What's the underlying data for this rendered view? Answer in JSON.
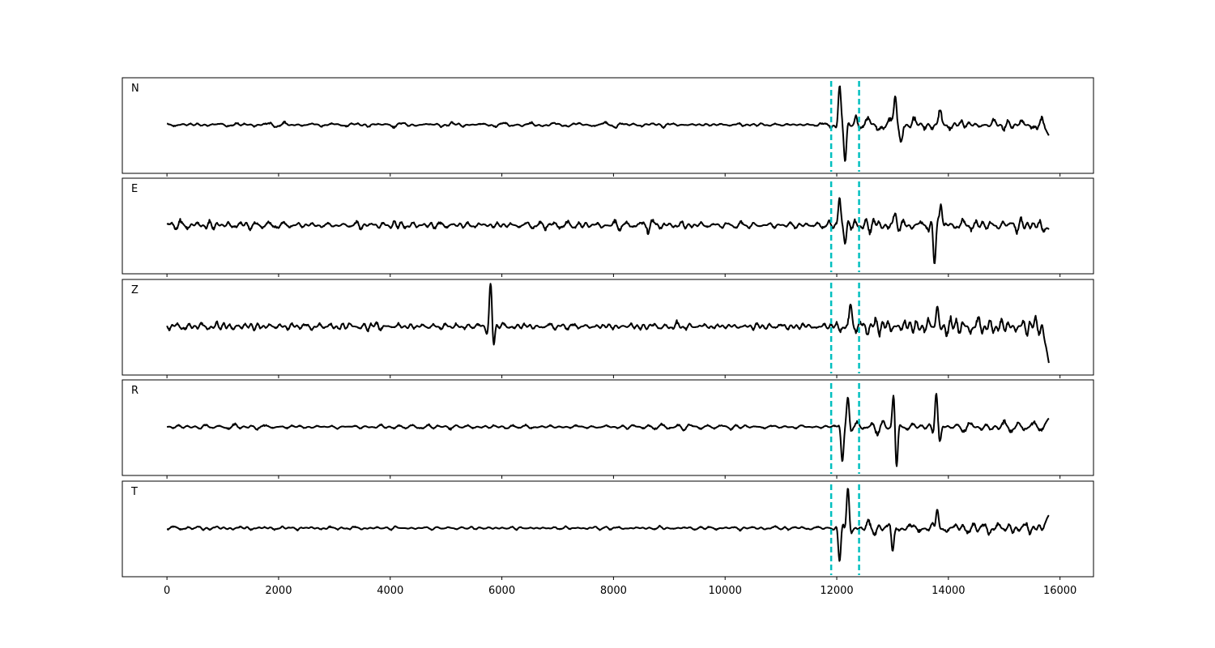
{
  "chart_data": {
    "type": "line",
    "xlim": [
      -800,
      16600
    ],
    "x_ticks": [
      0,
      2000,
      4000,
      6000,
      8000,
      10000,
      12000,
      14000,
      16000
    ],
    "x_tick_labels": [
      "0",
      "2000",
      "4000",
      "6000",
      "8000",
      "10000",
      "12000",
      "14000",
      "16000"
    ],
    "x_range": [
      0,
      15800
    ],
    "markers": {
      "x": [
        11900,
        12400
      ],
      "color": "#00bfbf",
      "style": "dashed"
    },
    "line_color": "#000000",
    "grid": false,
    "panels": [
      {
        "label": "N",
        "noise": 0.06,
        "noise_late": 0.17,
        "seed": 11,
        "events": [
          {
            "x": 12050,
            "a": 0.85
          },
          {
            "x": 12150,
            "a": -0.85
          },
          {
            "x": 12350,
            "a": 0.25
          },
          {
            "x": 13050,
            "a": 0.65
          },
          {
            "x": 13150,
            "a": -0.35
          },
          {
            "x": 13850,
            "a": 0.25
          }
        ],
        "end_value": -0.25
      },
      {
        "label": "E",
        "noise": 0.11,
        "noise_late": 0.22,
        "seed": 23,
        "events": [
          {
            "x": 12050,
            "a": 0.7
          },
          {
            "x": 12150,
            "a": -0.4
          },
          {
            "x": 13050,
            "a": 0.85
          },
          {
            "x": 13050,
            "a": -0.6
          },
          {
            "x": 13750,
            "a": -0.9
          },
          {
            "x": 13870,
            "a": 0.55
          }
        ],
        "end_value": -0.1
      },
      {
        "label": "Z",
        "noise": 0.13,
        "noise_late": 0.32,
        "seed": 37,
        "events": [
          {
            "x": 5800,
            "a": 0.95
          },
          {
            "x": 5850,
            "a": -0.35
          },
          {
            "x": 12250,
            "a": 0.5
          },
          {
            "x": 13800,
            "a": 0.45
          }
        ],
        "end_value": -0.85
      },
      {
        "label": "R",
        "noise": 0.08,
        "noise_late": 0.2,
        "seed": 53,
        "events": [
          {
            "x": 12100,
            "a": -0.8
          },
          {
            "x": 12200,
            "a": 0.7
          },
          {
            "x": 13020,
            "a": 0.7
          },
          {
            "x": 13070,
            "a": -0.9
          },
          {
            "x": 13780,
            "a": 0.8
          },
          {
            "x": 13850,
            "a": -0.4
          }
        ],
        "end_value": 0.2
      },
      {
        "label": "T",
        "noise": 0.05,
        "noise_late": 0.18,
        "seed": 71,
        "events": [
          {
            "x": 12050,
            "a": -0.8
          },
          {
            "x": 12200,
            "a": 0.95
          },
          {
            "x": 13000,
            "a": -0.55
          },
          {
            "x": 13800,
            "a": 0.45
          }
        ],
        "end_value": 0.3
      }
    ]
  }
}
